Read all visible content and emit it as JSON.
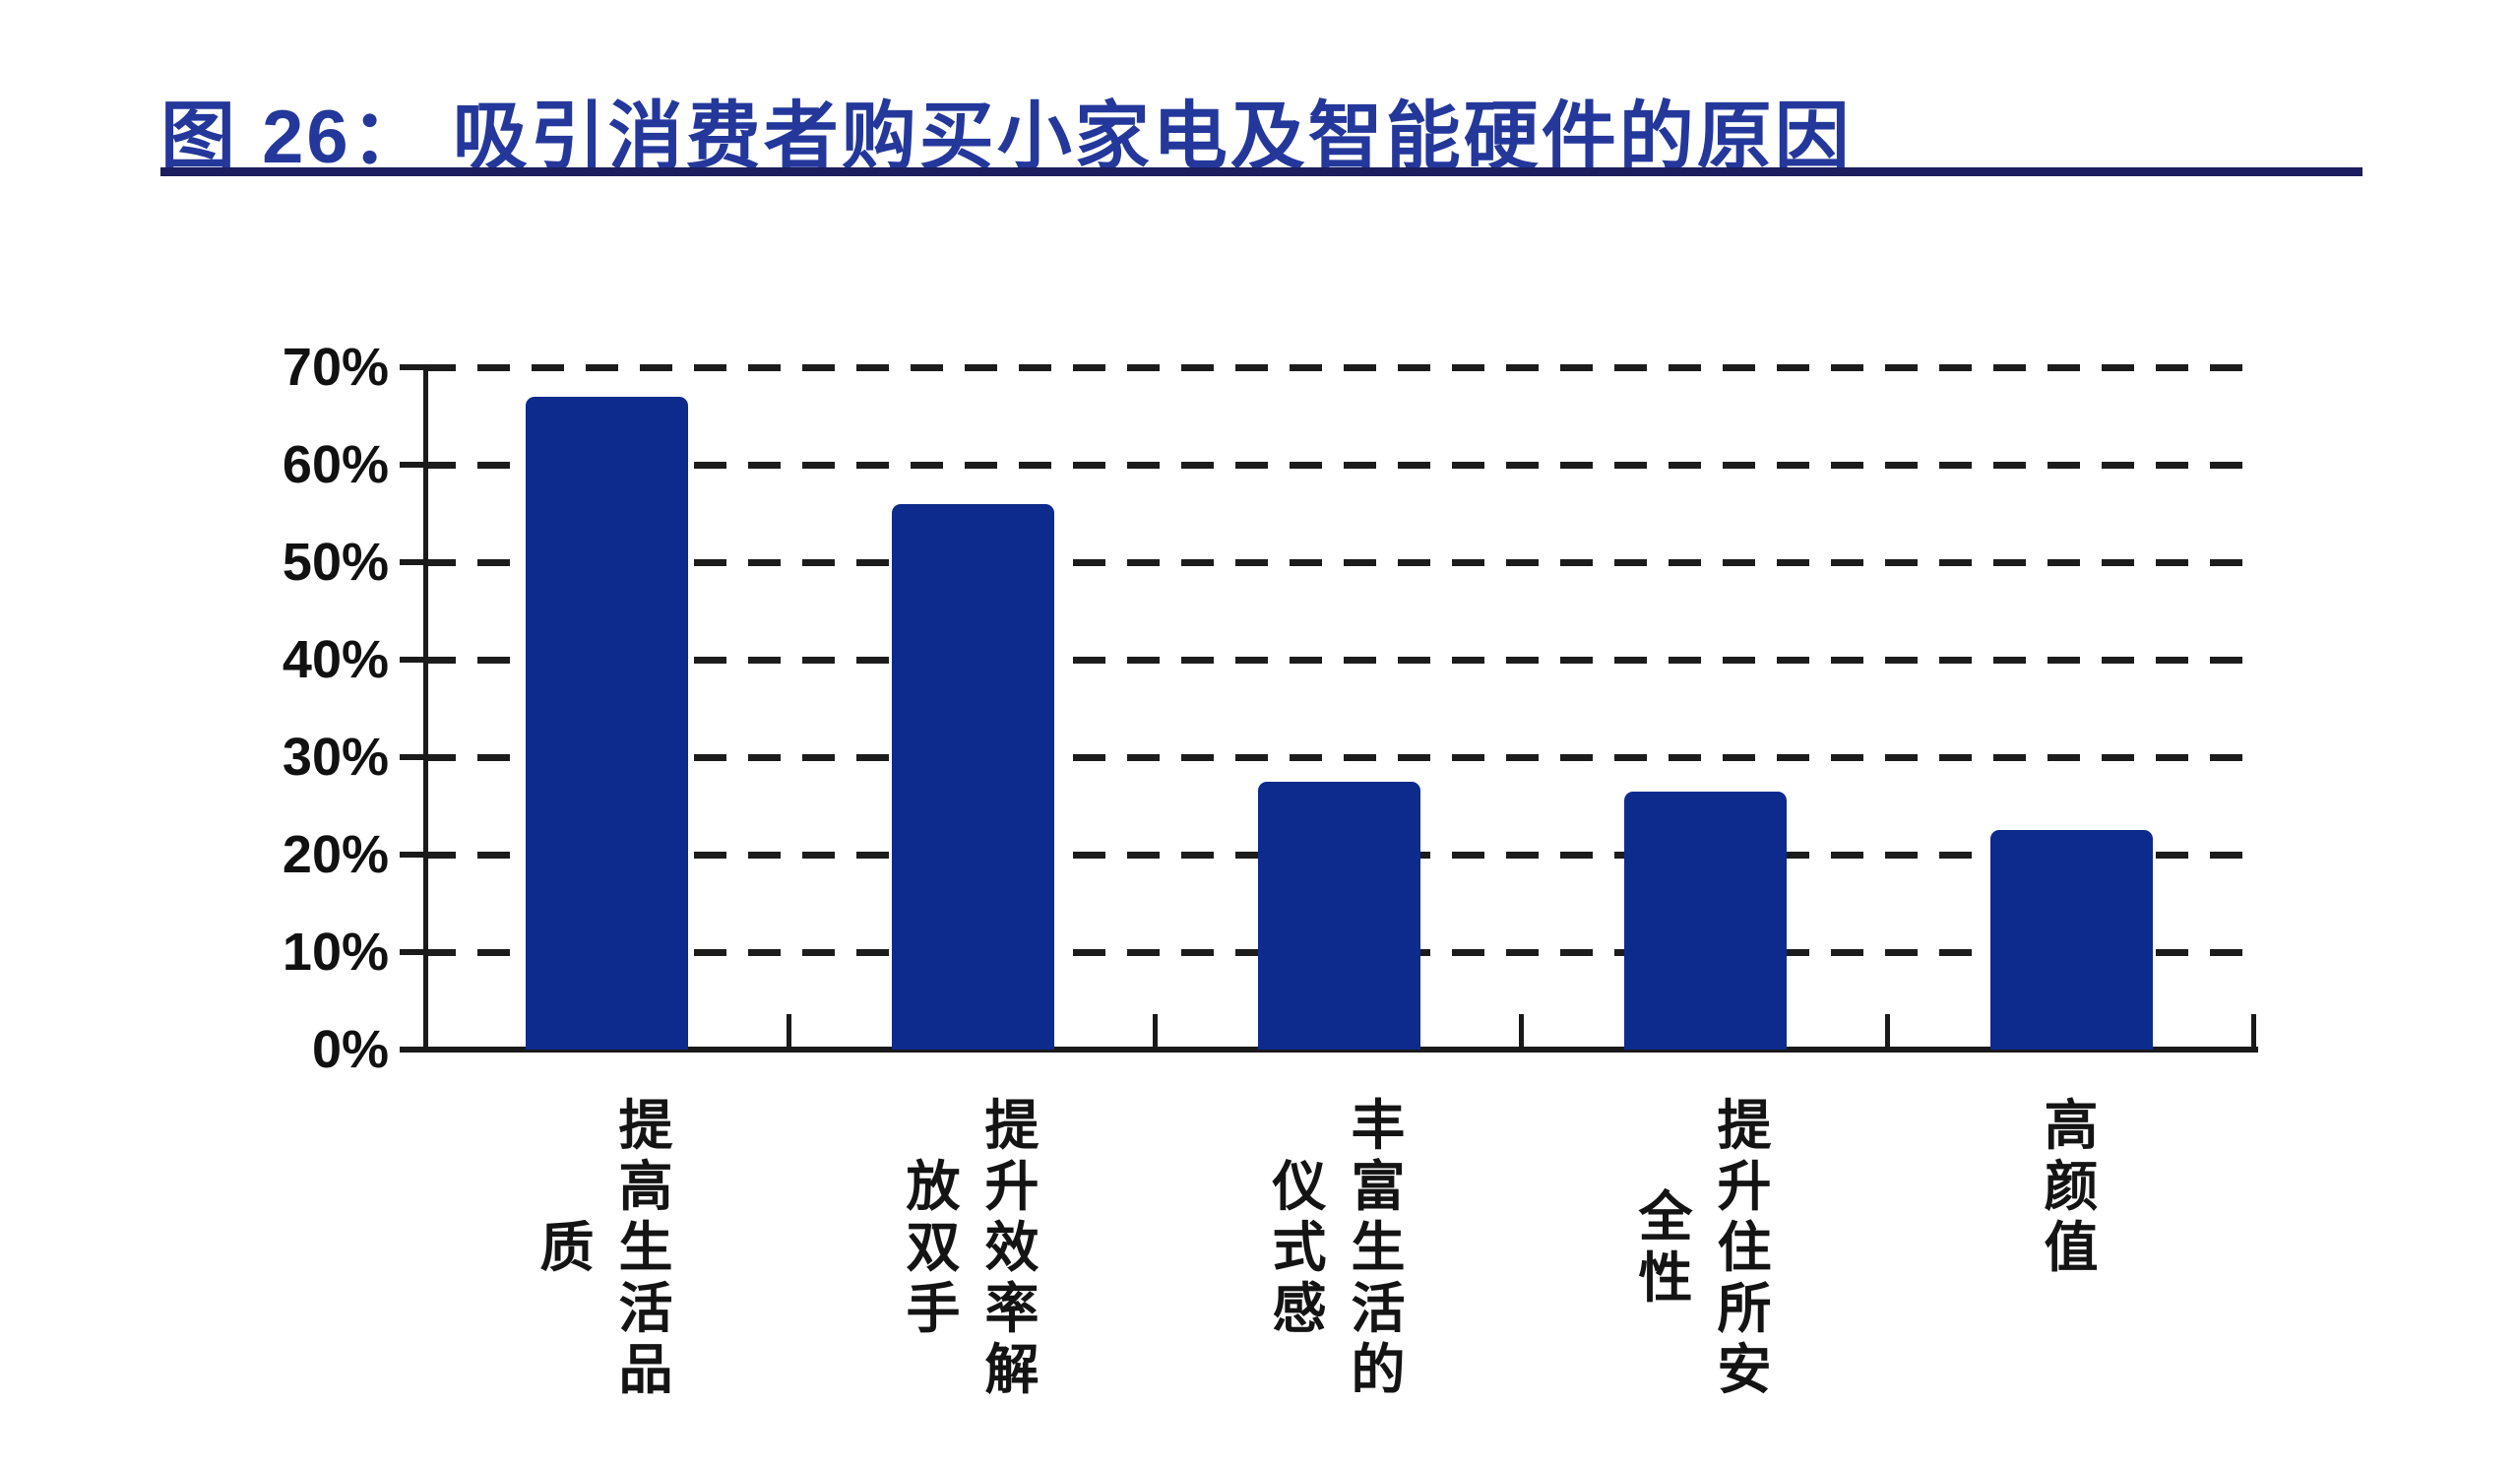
{
  "figure": {
    "title": "图 26： 吸引消费者购买小家电及智能硬件的原因"
  },
  "colors": {
    "title_blue": "#24389b",
    "rule_navy": "#1b1d5e",
    "bar_blue": "#0d2a8d",
    "axis_black": "#1a1a1a",
    "label_black": "#141414",
    "background": "#ffffff"
  },
  "chart_data": {
    "type": "bar",
    "title": "吸引消费者购买小家电及智能硬件的原因",
    "categories": [
      "提高生活品质",
      "提升效率解放双手",
      "丰富生活的仪式感",
      "提升住所安全性",
      "高颜值"
    ],
    "values": [
      67,
      56,
      27.5,
      26.5,
      22.5
    ],
    "unit": "%",
    "xlabel": "",
    "ylabel": "",
    "ylim": [
      0,
      70
    ],
    "ytick_step": 10,
    "ytick_labels": [
      "0%",
      "10%",
      "20%",
      "30%",
      "40%",
      "50%",
      "60%",
      "70%"
    ],
    "grid": "horizontal-dashed",
    "legend": "none",
    "bar_label_orientation": "vertical"
  }
}
